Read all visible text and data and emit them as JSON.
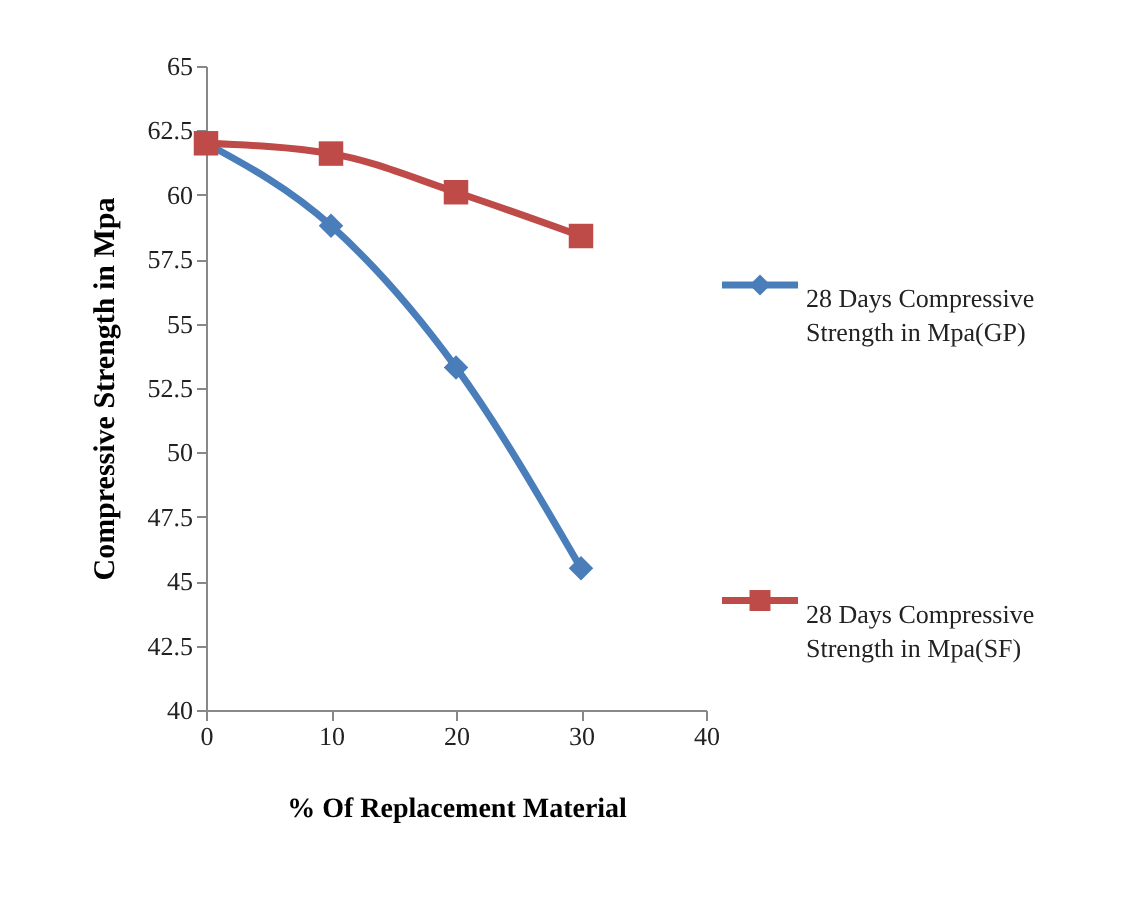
{
  "chart_data": {
    "type": "line",
    "xlabel": "% Of Replacement Material",
    "ylabel": "Compressive Strength in Mpa",
    "x": [
      0,
      10,
      20,
      30
    ],
    "xlim": [
      0,
      40
    ],
    "xticks": [
      0,
      10,
      20,
      30,
      40
    ],
    "ylim": [
      40,
      65
    ],
    "yticks": [
      40,
      42.5,
      45,
      47.5,
      50,
      52.5,
      55,
      57.5,
      60,
      62.5,
      65
    ],
    "grid": false,
    "legend": "right",
    "series": [
      {
        "name": "28 Days Compressive Strength in Mpa(GP)",
        "color": "#4a7ebb",
        "marker": "diamond",
        "values": [
          62.0,
          58.8,
          53.3,
          45.5
        ]
      },
      {
        "name": "28 Days Compressive Strength in Mpa(SF)",
        "color": "#be4b48",
        "marker": "square",
        "values": [
          62.0,
          61.6,
          60.1,
          58.4
        ]
      }
    ]
  }
}
